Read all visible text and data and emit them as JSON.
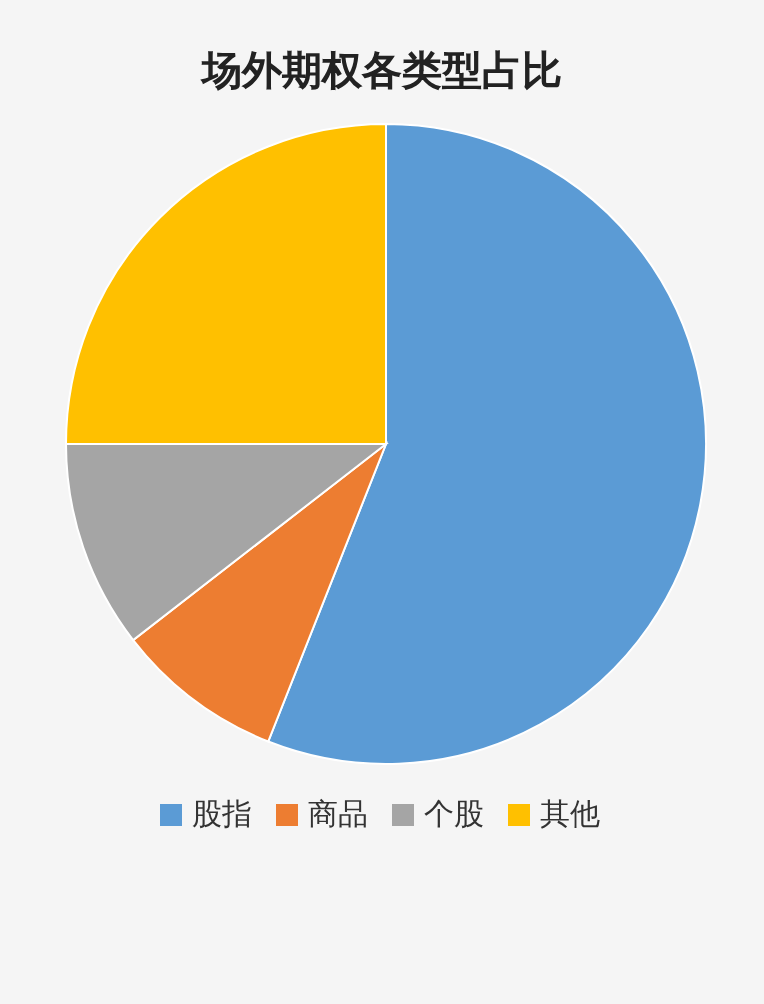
{
  "chart_data": {
    "type": "pie",
    "title": "场外期权各类型占比",
    "categories": [
      "股指",
      "商品",
      "个股",
      "其他"
    ],
    "values": [
      56,
      8.5,
      10.5,
      25
    ],
    "colors": [
      "#5b9bd5",
      "#ed7d31",
      "#a5a5a5",
      "#ffc000"
    ],
    "legend": "bottom"
  }
}
